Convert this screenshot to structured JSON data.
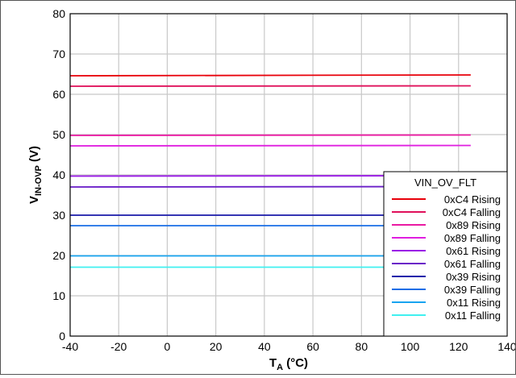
{
  "chart_data": {
    "type": "line",
    "title": "",
    "xlabel": {
      "main": "T",
      "sub": "A",
      "rest": " (°C)"
    },
    "ylabel": {
      "main": "V",
      "sub": "IN-OVP",
      "rest": " (V)"
    },
    "xlim": [
      -40,
      140
    ],
    "ylim": [
      0,
      80
    ],
    "xticks": [
      -40,
      -20,
      0,
      20,
      40,
      60,
      80,
      100,
      120,
      140
    ],
    "yticks": [
      0,
      10,
      20,
      30,
      40,
      50,
      60,
      70,
      80
    ],
    "grid": true,
    "legend": {
      "title": "VIN_OV_FLT",
      "placement": "bottom-right"
    },
    "series": [
      {
        "name": "0xC4 Rising",
        "color": "#e8000a",
        "x": [
          -40,
          125
        ],
        "y": [
          64.6,
          64.8
        ]
      },
      {
        "name": "0xC4 Falling",
        "color": "#e0105a",
        "x": [
          -40,
          125
        ],
        "y": [
          62.0,
          62.1
        ]
      },
      {
        "name": "0x89 Rising",
        "color": "#ea1aa2",
        "x": [
          -40,
          125
        ],
        "y": [
          49.8,
          49.9
        ]
      },
      {
        "name": "0x89 Falling",
        "color": "#e01ee0",
        "x": [
          -40,
          125
        ],
        "y": [
          47.2,
          47.3
        ]
      },
      {
        "name": "0x61 Rising",
        "color": "#9a1ae6",
        "x": [
          -40,
          125
        ],
        "y": [
          39.7,
          39.8
        ]
      },
      {
        "name": "0x61 Falling",
        "color": "#6a1ec8",
        "x": [
          -40,
          125
        ],
        "y": [
          37.0,
          37.1
        ]
      },
      {
        "name": "0x39 Rising",
        "color": "#1a1aaa",
        "x": [
          -40,
          125
        ],
        "y": [
          30.0,
          30.0
        ]
      },
      {
        "name": "0x39 Falling",
        "color": "#1a6ee6",
        "x": [
          -40,
          125
        ],
        "y": [
          27.4,
          27.4
        ]
      },
      {
        "name": "0x11 Rising",
        "color": "#18a4f0",
        "x": [
          -40,
          125
        ],
        "y": [
          19.9,
          19.9
        ]
      },
      {
        "name": "0x11 Falling",
        "color": "#40f0f0",
        "x": [
          -40,
          125
        ],
        "y": [
          17.1,
          17.1
        ]
      }
    ]
  }
}
